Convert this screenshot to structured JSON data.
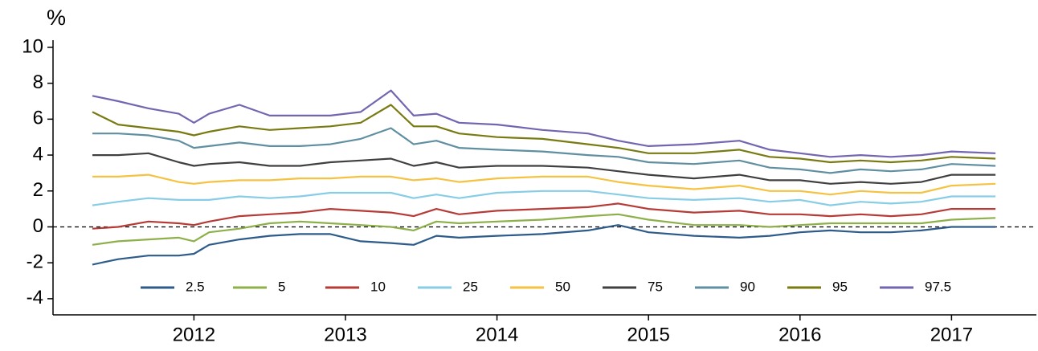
{
  "chart_data": {
    "type": "line",
    "ylabel": "%",
    "x": [
      2011.33,
      2011.5,
      2011.7,
      2011.9,
      2012.0,
      2012.1,
      2012.3,
      2012.5,
      2012.7,
      2012.9,
      2013.1,
      2013.3,
      2013.45,
      2013.6,
      2013.75,
      2014.0,
      2014.3,
      2014.6,
      2014.8,
      2015.0,
      2015.3,
      2015.6,
      2015.8,
      2016.0,
      2016.2,
      2016.4,
      2016.6,
      2016.8,
      2017.0,
      2017.29
    ],
    "xlim": [
      2011.07,
      2017.56
    ],
    "xticks": [
      2012,
      2013,
      2014,
      2015,
      2016,
      2017
    ],
    "ylim": [
      -4.9,
      10.4
    ],
    "yticks": [
      -4,
      -2,
      0,
      2,
      4,
      6,
      8,
      10
    ],
    "hline": 0,
    "legend": "bottom",
    "series": [
      {
        "name": "2.5",
        "color": "#2d5b8a",
        "values": [
          -2.1,
          -1.8,
          -1.6,
          -1.6,
          -1.5,
          -1.0,
          -0.7,
          -0.5,
          -0.4,
          -0.4,
          -0.8,
          -0.9,
          -1.0,
          -0.5,
          -0.6,
          -0.5,
          -0.4,
          -0.2,
          0.1,
          -0.3,
          -0.5,
          -0.6,
          -0.5,
          -0.3,
          -0.2,
          -0.3,
          -0.3,
          -0.2,
          0.0,
          0.0
        ]
      },
      {
        "name": "5",
        "color": "#8db04a",
        "values": [
          -1.0,
          -0.8,
          -0.7,
          -0.6,
          -0.8,
          -0.3,
          -0.1,
          0.2,
          0.3,
          0.2,
          0.1,
          0.0,
          -0.2,
          0.3,
          0.2,
          0.3,
          0.4,
          0.6,
          0.7,
          0.4,
          0.1,
          0.1,
          0.0,
          0.1,
          0.2,
          0.2,
          0.2,
          0.2,
          0.4,
          0.5
        ]
      },
      {
        "name": "10",
        "color": "#b63b36",
        "values": [
          -0.1,
          0.0,
          0.3,
          0.2,
          0.1,
          0.3,
          0.6,
          0.7,
          0.8,
          1.0,
          0.9,
          0.8,
          0.6,
          1.0,
          0.7,
          0.9,
          1.0,
          1.1,
          1.3,
          1.0,
          0.8,
          0.9,
          0.7,
          0.7,
          0.6,
          0.7,
          0.6,
          0.7,
          1.0,
          1.0
        ]
      },
      {
        "name": "25",
        "color": "#87cde6",
        "values": [
          1.2,
          1.4,
          1.6,
          1.5,
          1.5,
          1.5,
          1.7,
          1.6,
          1.7,
          1.9,
          1.9,
          1.9,
          1.6,
          1.8,
          1.6,
          1.9,
          2.0,
          2.0,
          1.8,
          1.6,
          1.5,
          1.6,
          1.4,
          1.5,
          1.2,
          1.4,
          1.3,
          1.4,
          1.7,
          1.7
        ]
      },
      {
        "name": "50",
        "color": "#f5c242",
        "values": [
          2.8,
          2.8,
          2.9,
          2.5,
          2.4,
          2.5,
          2.6,
          2.6,
          2.7,
          2.7,
          2.8,
          2.8,
          2.6,
          2.7,
          2.5,
          2.7,
          2.8,
          2.8,
          2.5,
          2.3,
          2.1,
          2.3,
          2.0,
          2.0,
          1.8,
          2.0,
          1.9,
          1.9,
          2.3,
          2.4
        ]
      },
      {
        "name": "75",
        "color": "#404040",
        "values": [
          4.0,
          4.0,
          4.1,
          3.6,
          3.4,
          3.5,
          3.6,
          3.4,
          3.4,
          3.6,
          3.7,
          3.8,
          3.4,
          3.6,
          3.3,
          3.4,
          3.4,
          3.3,
          3.1,
          2.9,
          2.7,
          2.9,
          2.6,
          2.6,
          2.4,
          2.5,
          2.4,
          2.5,
          2.9,
          2.9
        ]
      },
      {
        "name": "90",
        "color": "#5f8fa0",
        "values": [
          5.2,
          5.2,
          5.1,
          4.8,
          4.4,
          4.5,
          4.7,
          4.5,
          4.5,
          4.6,
          4.9,
          5.5,
          4.6,
          4.8,
          4.4,
          4.3,
          4.2,
          4.0,
          3.9,
          3.6,
          3.5,
          3.7,
          3.3,
          3.2,
          3.0,
          3.2,
          3.1,
          3.2,
          3.5,
          3.4
        ]
      },
      {
        "name": "95",
        "color": "#7a7a12",
        "values": [
          6.4,
          5.7,
          5.5,
          5.3,
          5.1,
          5.3,
          5.6,
          5.4,
          5.5,
          5.6,
          5.8,
          6.8,
          5.6,
          5.6,
          5.2,
          5.0,
          4.9,
          4.6,
          4.4,
          4.1,
          4.1,
          4.3,
          3.9,
          3.8,
          3.6,
          3.7,
          3.6,
          3.7,
          3.9,
          3.8
        ]
      },
      {
        "name": "97.5",
        "color": "#7365b0",
        "values": [
          7.3,
          7.0,
          6.6,
          6.3,
          5.8,
          6.3,
          6.8,
          6.2,
          6.2,
          6.2,
          6.4,
          7.6,
          6.2,
          6.3,
          5.8,
          5.7,
          5.4,
          5.2,
          4.8,
          4.5,
          4.6,
          4.8,
          4.3,
          4.1,
          3.9,
          4.0,
          3.9,
          4.0,
          4.2,
          4.1
        ]
      }
    ]
  }
}
